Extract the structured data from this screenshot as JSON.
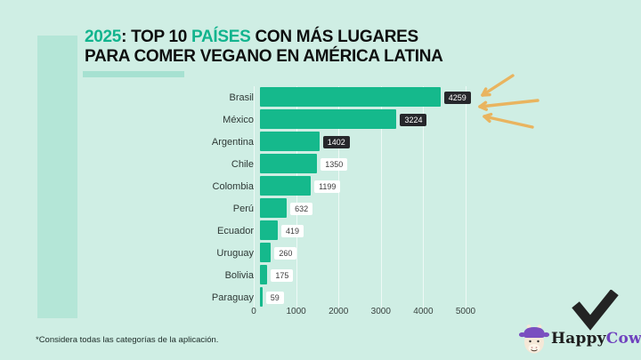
{
  "title": {
    "year": "2025",
    "mid1": ": TOP 10 ",
    "highlight": "PAÍSES",
    "mid2": " CON MÁS LUGARES",
    "line2": "PARA COMER VEGANO EN AMÉRICA LATINA"
  },
  "chart_data": {
    "type": "bar",
    "orientation": "horizontal",
    "title": "2025: TOP 10 PAÍSES CON MÁS LUGARES PARA COMER VEGANO EN AMÉRICA LATINA",
    "categories": [
      "Brasil",
      "México",
      "Argentina",
      "Chile",
      "Colombia",
      "Perú",
      "Ecuador",
      "Uruguay",
      "Bolivia",
      "Paraguay"
    ],
    "values": [
      4259,
      3224,
      1402,
      1350,
      1199,
      632,
      419,
      260,
      175,
      59
    ],
    "xlabel": "",
    "ylabel": "",
    "xlim": [
      0,
      5000
    ],
    "xticks": [
      0,
      1000,
      2000,
      3000,
      4000,
      5000
    ],
    "grid": true,
    "legend": false,
    "bar_color": "#15b98c",
    "dark_label_indices": [
      0,
      1,
      2
    ]
  },
  "footnote": "*Considera todas las categorías de la aplicación.",
  "logo": {
    "happy": "Happy",
    "cow": "Cow"
  },
  "icons": {
    "emphasis_arrows": "three hand-drawn arrows pointing at top value",
    "checkmark": "hand-drawn check mark",
    "cow": "happycow mascot head"
  },
  "colors": {
    "background": "#cfeee4",
    "side_strip": "#b4e6d7",
    "accent_green": "#15b98c",
    "title_highlight": "#12b48e",
    "chip_dark": "#26272b",
    "logo_purple": "#6f42be",
    "arrow_orange": "#e9b45f"
  }
}
